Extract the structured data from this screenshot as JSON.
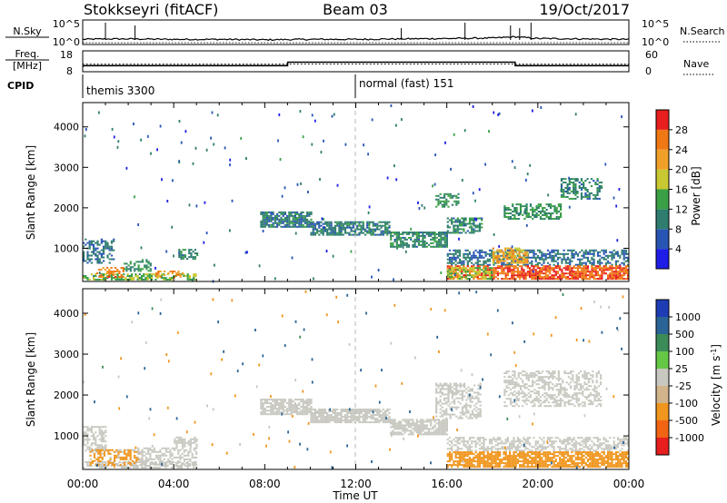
{
  "header": {
    "title": "Stokkseyri (fitACF)",
    "beam": "Beam 03",
    "date": "19/Oct/2017"
  },
  "noise_panel": {
    "left_label": "N.Sky",
    "left_ticks": [
      "10^5",
      "10^0"
    ],
    "right_label": "N.Search",
    "right_ticks": [
      "10^5",
      "10^0"
    ]
  },
  "freq_panel": {
    "left_label_1": "Freq.",
    "left_label_2": "[MHz]",
    "left_ticks": [
      "18",
      "8"
    ],
    "right_label": "Nave",
    "right_ticks": [
      "60",
      "0"
    ]
  },
  "cpid": {
    "label": "CPID",
    "modes": [
      {
        "text": "themis 3300",
        "start_hour": 0
      },
      {
        "text": "normal (fast) 151",
        "start_hour": 12
      }
    ]
  },
  "x_axis": {
    "label": "Time UT",
    "ticks": [
      "00:00",
      "04:00",
      "08:00",
      "12:00",
      "16:00",
      "20:00",
      "00:00"
    ],
    "range_hours": [
      0,
      24
    ]
  },
  "power_panel": {
    "ylabel": "Slant Range [km]",
    "yticks": [
      "1000",
      "2000",
      "3000",
      "4000"
    ],
    "colorbar_label": "Power [dB]",
    "colorbar_ticks": [
      "4",
      "8",
      "12",
      "16",
      "20",
      "24",
      "28"
    ]
  },
  "velocity_panel": {
    "ylabel": "Slant Range [km]",
    "yticks": [
      "1000",
      "2000",
      "3000",
      "4000"
    ],
    "colorbar_label": "Velocity [m s",
    "colorbar_sup": "-1",
    "colorbar_label_end": "]",
    "colorbar_ticks": [
      "1000",
      "500",
      "100",
      "25",
      "-25",
      "-100",
      "-500",
      "-1000"
    ]
  },
  "colors": {
    "power_scale": [
      "#1e1ee6",
      "#2855b4",
      "#2e7d6e",
      "#3aa046",
      "#c8c832",
      "#f0a028",
      "#f07814",
      "#e61e1e"
    ],
    "velocity_scale": [
      "#1e3cb4",
      "#2a6496",
      "#3c8c5a",
      "#64c846",
      "#c8c8c0",
      "#d2b48c",
      "#f0961e",
      "#f06414",
      "#e61e1e"
    ]
  },
  "chart_data": [
    {
      "type": "line",
      "title": "Noise",
      "x_range_hours": [
        0,
        24
      ],
      "series": [
        {
          "name": "N.Sky",
          "x": [
            0,
            1,
            2,
            4,
            6,
            8,
            10,
            12,
            14,
            16,
            18,
            19,
            20,
            22,
            24
          ],
          "y_log": [
            0.8,
            0.9,
            0.9,
            0.8,
            0.8,
            0.7,
            0.8,
            0.8,
            0.9,
            1.0,
            1.1,
            1.4,
            1.0,
            0.9,
            0.8
          ]
        },
        {
          "name": "N.Search",
          "x": [
            0,
            24
          ],
          "y_log": [
            0,
            0
          ]
        }
      ]
    },
    {
      "type": "line",
      "title": "Frequency / Nave",
      "x_range_hours": [
        0,
        24
      ],
      "series": [
        {
          "name": "Freq.",
          "x": [
            0,
            0.05,
            9,
            9.01,
            19,
            19.01,
            24
          ],
          "y": [
            10,
            10.5,
            10.5,
            12.5,
            12.5,
            10.5,
            10.5
          ],
          "ylim": [
            8,
            18
          ]
        },
        {
          "name": "Nave",
          "x": [
            0,
            24
          ],
          "y": [
            20,
            20
          ],
          "ylim": [
            0,
            60
          ]
        }
      ]
    },
    {
      "type": "heatmap",
      "title": "Power [dB]",
      "x_range_hours": [
        0,
        24
      ],
      "y_range_km": [
        180,
        4600
      ],
      "value_range": [
        0,
        30
      ],
      "blobs": [
        {
          "t0": 0.0,
          "t1": 5.0,
          "r0": 180,
          "r1": 320,
          "v": 14,
          "density": 0.6
        },
        {
          "t0": 0.0,
          "t1": 1.4,
          "r0": 600,
          "r1": 1200,
          "v": 8,
          "density": 0.45
        },
        {
          "t0": 0.6,
          "t1": 1.8,
          "r0": 250,
          "r1": 500,
          "v": 24,
          "density": 0.5
        },
        {
          "t0": 1.8,
          "t1": 3.0,
          "r0": 400,
          "r1": 700,
          "v": 11,
          "density": 0.4
        },
        {
          "t0": 4.2,
          "t1": 5.0,
          "r0": 700,
          "r1": 950,
          "v": 10,
          "density": 0.6
        },
        {
          "t0": 3.2,
          "t1": 4.4,
          "r0": 250,
          "r1": 400,
          "v": 22,
          "density": 0.5
        },
        {
          "t0": 7.8,
          "t1": 10.0,
          "r0": 1500,
          "r1": 1900,
          "v": 9,
          "density": 0.8
        },
        {
          "t0": 10.0,
          "t1": 13.5,
          "r0": 1300,
          "r1": 1650,
          "v": 9,
          "density": 0.75
        },
        {
          "t0": 13.5,
          "t1": 16.0,
          "r0": 1000,
          "r1": 1400,
          "v": 10,
          "density": 0.75
        },
        {
          "t0": 16.0,
          "t1": 17.5,
          "r0": 1350,
          "r1": 1750,
          "v": 10,
          "density": 0.6
        },
        {
          "t0": 15.5,
          "t1": 16.5,
          "r0": 2000,
          "r1": 2350,
          "v": 12,
          "density": 0.5
        },
        {
          "t0": 18.5,
          "t1": 21.0,
          "r0": 1700,
          "r1": 2100,
          "v": 11,
          "density": 0.55
        },
        {
          "t0": 21.0,
          "t1": 22.8,
          "r0": 2200,
          "r1": 2700,
          "v": 10,
          "density": 0.5
        },
        {
          "t0": 16.0,
          "t1": 24.0,
          "r0": 550,
          "r1": 950,
          "v": 8,
          "density": 0.55
        },
        {
          "t0": 18.0,
          "t1": 19.5,
          "r0": 600,
          "r1": 1000,
          "v": 20,
          "density": 0.6
        },
        {
          "t0": 16.0,
          "t1": 24.0,
          "r0": 200,
          "r1": 550,
          "v": 26,
          "density": 0.75
        },
        {
          "t0": 16.0,
          "t1": 18.0,
          "r0": 200,
          "r1": 500,
          "v": 16,
          "density": 0.6
        }
      ]
    },
    {
      "type": "heatmap",
      "title": "Velocity [m s-1]",
      "x_range_hours": [
        0,
        24
      ],
      "y_range_km": [
        180,
        4600
      ],
      "value_range": [
        -1000,
        1000
      ],
      "blobs": [
        {
          "t0": 0.0,
          "t1": 1.0,
          "r0": 600,
          "r1": 1200,
          "v": 0,
          "density": 0.6
        },
        {
          "t0": 0.0,
          "t1": 5.0,
          "r0": 180,
          "r1": 320,
          "v": 50,
          "density": 0.6
        },
        {
          "t0": 0.3,
          "t1": 2.5,
          "r0": 250,
          "r1": 650,
          "v": -200,
          "density": 0.5
        },
        {
          "t0": 2.4,
          "t1": 5.0,
          "r0": 250,
          "r1": 700,
          "v": 40,
          "density": 0.55
        },
        {
          "t0": 4.0,
          "t1": 5.0,
          "r0": 700,
          "r1": 950,
          "v": 0,
          "density": 0.6
        },
        {
          "t0": 7.8,
          "t1": 10.0,
          "r0": 1500,
          "r1": 1900,
          "v": 0,
          "density": 0.85
        },
        {
          "t0": 10.0,
          "t1": 13.5,
          "r0": 1300,
          "r1": 1650,
          "v": 0,
          "density": 0.8
        },
        {
          "t0": 13.5,
          "t1": 16.0,
          "r0": 1000,
          "r1": 1400,
          "v": 0,
          "density": 0.8
        },
        {
          "t0": 15.5,
          "t1": 17.5,
          "r0": 1400,
          "r1": 2300,
          "v": 0,
          "density": 0.5
        },
        {
          "t0": 18.5,
          "t1": 22.8,
          "r0": 1700,
          "r1": 2600,
          "v": 0,
          "density": 0.5
        },
        {
          "t0": 16.0,
          "t1": 24.0,
          "r0": 600,
          "r1": 950,
          "v": 0,
          "density": 0.55
        },
        {
          "t0": 16.0,
          "t1": 24.0,
          "r0": 200,
          "r1": 600,
          "v": -300,
          "density": 0.8
        }
      ]
    }
  ]
}
